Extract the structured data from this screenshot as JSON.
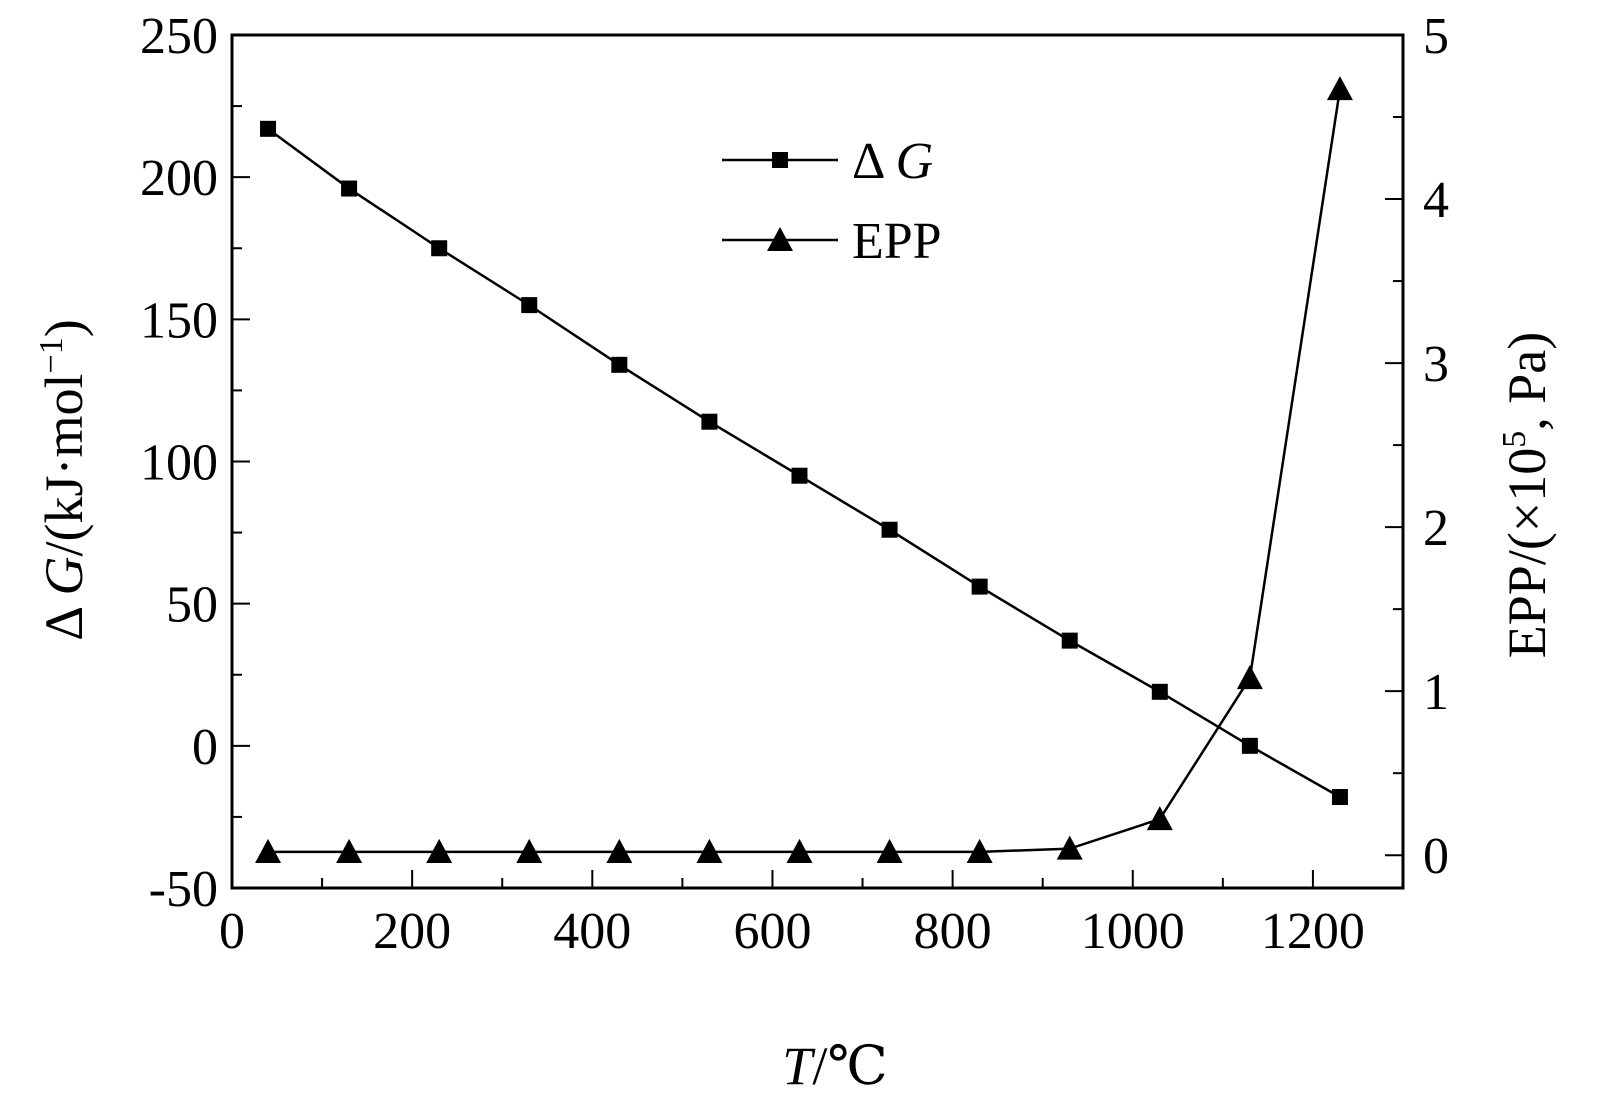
{
  "chart_data": {
    "type": "line",
    "x": [
      40,
      130,
      230,
      330,
      430,
      530,
      630,
      730,
      830,
      930,
      1030,
      1130,
      1230
    ],
    "xlim": [
      0,
      1300
    ],
    "x_ticks": [
      0,
      200,
      400,
      600,
      800,
      1000,
      1200
    ],
    "x_tick_labels": [
      "0",
      "200",
      "400",
      "600",
      "800",
      "1000",
      "1200"
    ],
    "xlabel": {
      "symbol": "T",
      "unit": "/℃"
    },
    "ylim_left": [
      -50,
      250
    ],
    "y_ticks_left": [
      -50,
      0,
      50,
      100,
      150,
      200,
      250
    ],
    "y_tick_labels_left": [
      "-50",
      "0",
      "50",
      "100",
      "150",
      "200",
      "250"
    ],
    "ylabel_left": {
      "prefix": "Δ ",
      "symbol": "G",
      "unit": "/(kJ·mol",
      "sup": "−1",
      "close": ")"
    },
    "ylim_right": [
      -0.2,
      5
    ],
    "y_ticks_right": [
      0,
      1,
      2,
      3,
      4,
      5
    ],
    "y_tick_labels_right": [
      "0",
      "1",
      "2",
      "3",
      "4",
      "5"
    ],
    "ylabel_right": {
      "main": "EPP/(×10",
      "sup": "5",
      "tail": ", Pa)"
    },
    "grid": false,
    "legend_position": "upper-center",
    "series": [
      {
        "name": "Δ G",
        "legend_prefix": "Δ ",
        "legend_symbol": "G",
        "axis": "left",
        "marker": "square",
        "color": "#000000",
        "values": [
          217,
          196,
          175,
          155,
          134,
          114,
          95,
          76,
          56,
          37,
          19,
          0,
          -18
        ]
      },
      {
        "name": "EPP",
        "axis": "right",
        "marker": "triangle",
        "color": "#000000",
        "values": [
          0.02,
          0.02,
          0.02,
          0.02,
          0.02,
          0.02,
          0.02,
          0.02,
          0.02,
          0.04,
          0.22,
          1.08,
          4.67
        ]
      }
    ]
  }
}
